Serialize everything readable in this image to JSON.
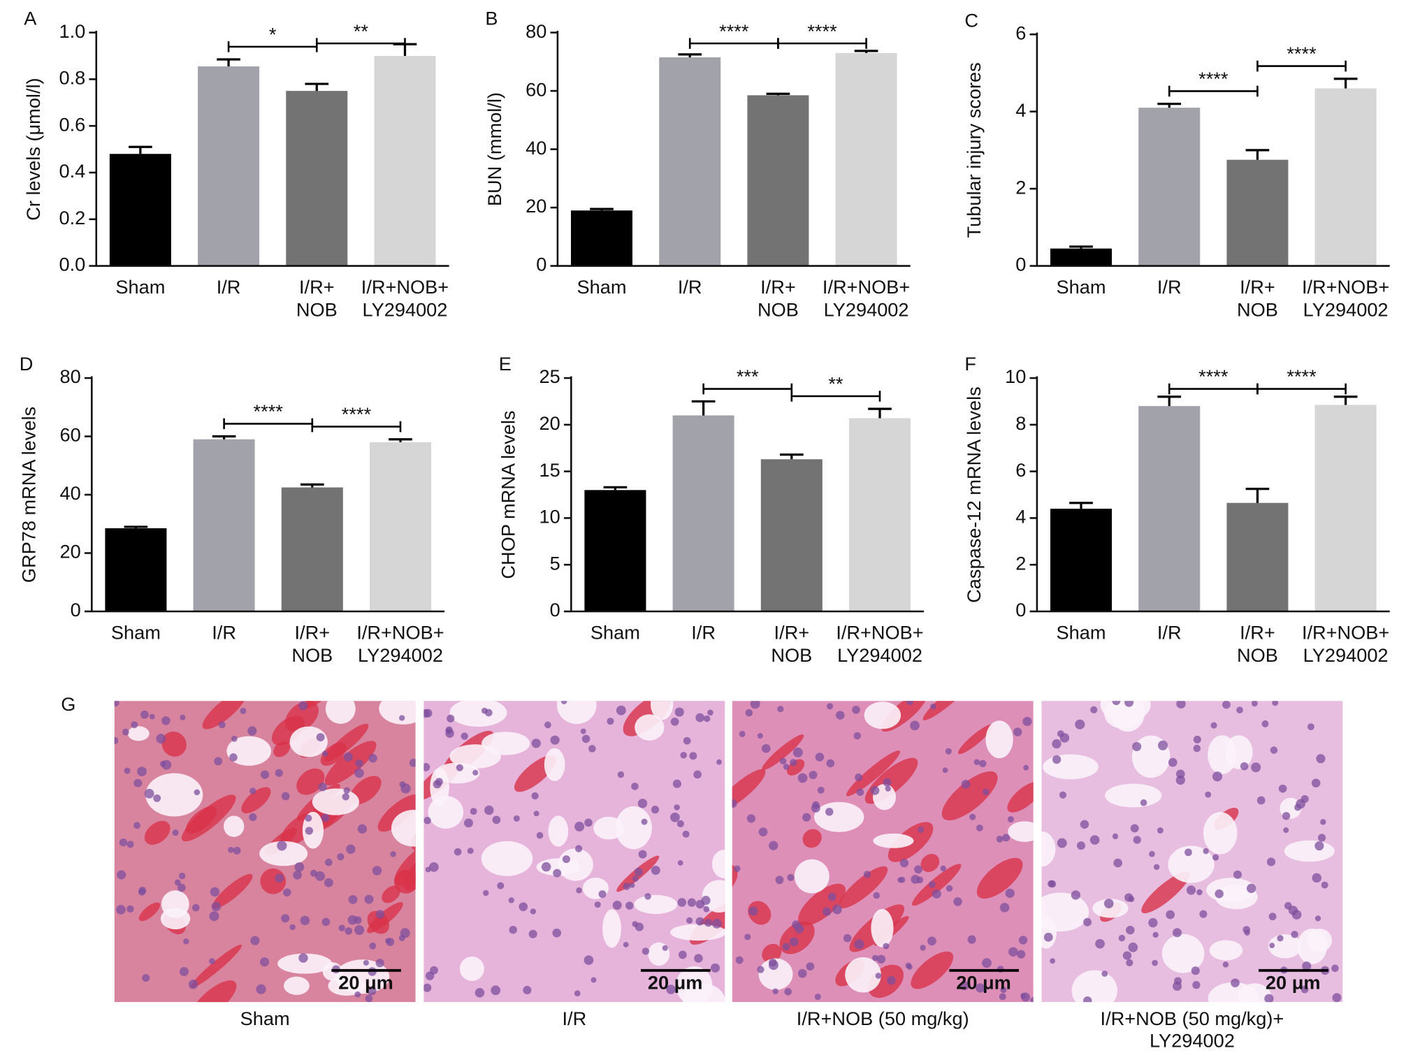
{
  "chart_data": [
    {
      "type": "bar",
      "panel_label": "A",
      "y_label": "Cr levels (μmol/l)",
      "categories": [
        [
          "Sham"
        ],
        [
          "I/R"
        ],
        [
          "I/R+",
          "NOB"
        ],
        [
          "I/R+NOB+",
          "LY294002"
        ]
      ],
      "series": [
        {
          "colors": [
            "#000000",
            "#a2a2aa",
            "#737373",
            "#d6d6d6"
          ],
          "values": [
            0.48,
            0.855,
            0.75,
            0.9
          ],
          "errors": [
            0.03,
            0.03,
            0.03,
            0.05
          ]
        }
      ],
      "ylim": [
        0,
        1
      ],
      "yticks": [
        {
          "value": 0,
          "label": "0.0"
        },
        0.2,
        0.4,
        0.6,
        0.8,
        {
          "value": 1,
          "label": "1.0"
        }
      ],
      "annotations": [
        {
          "text": "*",
          "between": [
            1,
            2
          ]
        },
        {
          "text": "**",
          "between": [
            2,
            3
          ]
        }
      ]
    },
    {
      "type": "bar",
      "panel_label": "B",
      "y_label": "BUN (mmol/l)",
      "categories": [
        [
          "Sham"
        ],
        [
          "I/R"
        ],
        [
          "I/R+",
          "NOB"
        ],
        [
          "I/R+NOB+",
          "LY294002"
        ]
      ],
      "series": [
        {
          "colors": [
            "#000000",
            "#a2a2aa",
            "#737373",
            "#d6d6d6"
          ],
          "values": [
            19,
            71.5,
            58.5,
            73
          ],
          "errors": [
            0.5,
            1,
            0.5,
            0.7
          ]
        }
      ],
      "ylim": [
        0,
        80
      ],
      "yticks": [
        0,
        20,
        40,
        60,
        80
      ],
      "annotations": [
        {
          "text": "****",
          "between": [
            1,
            2
          ]
        },
        {
          "text": "****",
          "between": [
            2,
            3
          ]
        }
      ]
    },
    {
      "type": "bar",
      "panel_label": "C",
      "y_label": "Tubular injury scores",
      "categories": [
        [
          "Sham"
        ],
        [
          "I/R"
        ],
        [
          "I/R+",
          "NOB"
        ],
        [
          "I/R+NOB+",
          "LY294002"
        ]
      ],
      "series": [
        {
          "colors": [
            "#000000",
            "#a2a2aa",
            "#737373",
            "#d6d6d6"
          ],
          "values": [
            0.45,
            4.1,
            2.75,
            4.6
          ],
          "errors": [
            0.05,
            0.1,
            0.25,
            0.25
          ]
        }
      ],
      "ylim": [
        0,
        6
      ],
      "yticks": [
        0,
        2,
        4,
        6
      ],
      "annotations": [
        {
          "text": "****",
          "between": [
            1,
            2
          ]
        },
        {
          "text": "****",
          "between": [
            2,
            3
          ]
        }
      ]
    },
    {
      "type": "bar",
      "panel_label": "D",
      "y_label": "GRP78 mRNA levels",
      "categories": [
        [
          "Sham"
        ],
        [
          "I/R"
        ],
        [
          "I/R+",
          "NOB"
        ],
        [
          "I/R+NOB+",
          "LY294002"
        ]
      ],
      "series": [
        {
          "colors": [
            "#000000",
            "#a2a2aa",
            "#737373",
            "#d6d6d6"
          ],
          "values": [
            28.5,
            59,
            42.5,
            58
          ],
          "errors": [
            0.5,
            1,
            1,
            1
          ]
        }
      ],
      "ylim": [
        0,
        80
      ],
      "yticks": [
        0,
        20,
        40,
        60,
        80
      ],
      "annotations": [
        {
          "text": "****",
          "between": [
            1,
            2
          ]
        },
        {
          "text": "****",
          "between": [
            2,
            3
          ]
        }
      ]
    },
    {
      "type": "bar",
      "panel_label": "E",
      "y_label": "CHOP mRNA levels",
      "categories": [
        [
          "Sham"
        ],
        [
          "I/R"
        ],
        [
          "I/R+",
          "NOB"
        ],
        [
          "I/R+NOB+",
          "LY294002"
        ]
      ],
      "series": [
        {
          "colors": [
            "#000000",
            "#a2a2aa",
            "#737373",
            "#d6d6d6"
          ],
          "values": [
            13,
            21,
            16.3,
            20.7
          ],
          "errors": [
            0.3,
            1.5,
            0.5,
            1
          ]
        }
      ],
      "ylim": [
        0,
        25
      ],
      "yticks": [
        0,
        5,
        10,
        15,
        20,
        25
      ],
      "annotations": [
        {
          "text": "***",
          "between": [
            1,
            2
          ]
        },
        {
          "text": "**",
          "between": [
            2,
            3
          ]
        }
      ]
    },
    {
      "type": "bar",
      "panel_label": "F",
      "y_label": "Caspase-12 mRNA levels",
      "categories": [
        [
          "Sham"
        ],
        [
          "I/R"
        ],
        [
          "I/R+",
          "NOB"
        ],
        [
          "I/R+NOB+",
          "LY294002"
        ]
      ],
      "series": [
        {
          "colors": [
            "#000000",
            "#a2a2aa",
            "#737373",
            "#d6d6d6"
          ],
          "values": [
            4.4,
            8.8,
            4.65,
            8.85
          ],
          "errors": [
            0.25,
            0.4,
            0.6,
            0.35
          ]
        }
      ],
      "ylim": [
        0,
        10
      ],
      "yticks": [
        0,
        2,
        4,
        6,
        8,
        10
      ],
      "annotations": [
        {
          "text": "****",
          "between": [
            1,
            2
          ]
        },
        {
          "text": "****",
          "between": [
            2,
            3
          ]
        }
      ]
    }
  ],
  "histology": {
    "panel_label": "G",
    "panels": [
      {
        "caption": [
          "Sham"
        ],
        "scale_bar": "20 μm"
      },
      {
        "caption": [
          "I/R"
        ],
        "scale_bar": "20 μm"
      },
      {
        "caption": [
          "I/R+NOB (50 mg/kg)"
        ],
        "scale_bar": "20 μm"
      },
      {
        "caption": [
          "I/R+NOB (50 mg/kg)+",
          "LY294002"
        ],
        "scale_bar": "20 μm"
      }
    ]
  }
}
